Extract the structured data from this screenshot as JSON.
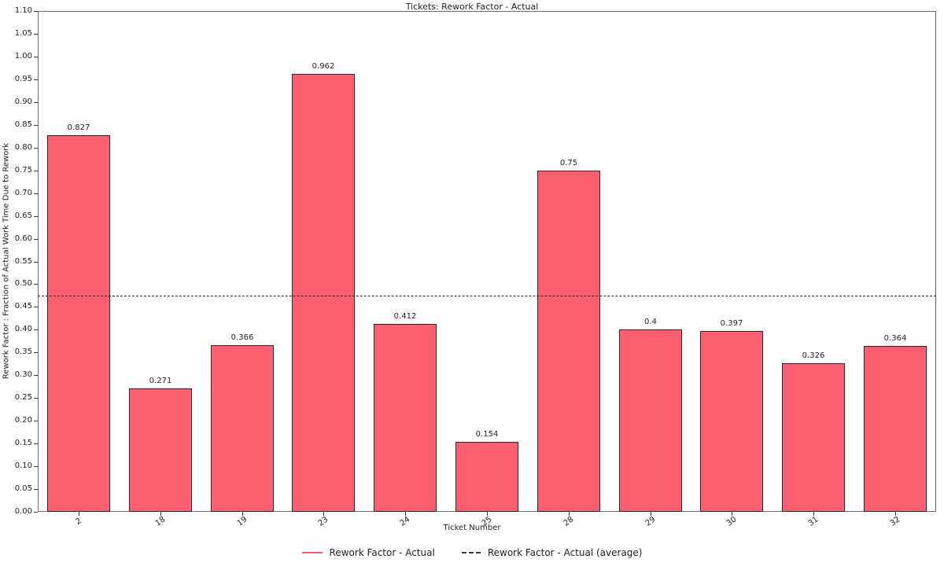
{
  "chart_data": {
    "type": "bar",
    "title": "Tickets: Rework Factor - Actual",
    "xlabel": "Ticket Number",
    "ylabel": "Rework Factor : Fraction of Actual Work Time Due to Rework",
    "categories": [
      "2",
      "18",
      "19",
      "23",
      "24",
      "25",
      "28",
      "29",
      "30",
      "31",
      "32"
    ],
    "values": [
      0.827,
      0.271,
      0.366,
      0.962,
      0.412,
      0.154,
      0.75,
      0.4,
      0.397,
      0.326,
      0.364
    ],
    "value_labels": [
      "0.827",
      "0.271",
      "0.366",
      "0.962",
      "0.412",
      "0.154",
      "0.75",
      "0.4",
      "0.397",
      "0.326",
      "0.364"
    ],
    "average_line": {
      "value": 0.4754,
      "style": "dashed",
      "color": "#222222"
    },
    "ylim": [
      0,
      1.1
    ],
    "ytick_step": 0.05,
    "grid": false,
    "legend": {
      "position": "bottom-center",
      "entries": [
        {
          "label": "Rework Factor - Actual",
          "swatch": "line",
          "color": "#fa5e71"
        },
        {
          "label": "Rework Factor - Actual (average)",
          "swatch": "dashed-line",
          "color": "#3a3a3a"
        }
      ]
    },
    "colors": {
      "bar_fill": "#fa5e71",
      "bar_edge": "#2b2b2b",
      "axis_frame": "#6e6e6e",
      "text": "#1f1f1f"
    }
  }
}
